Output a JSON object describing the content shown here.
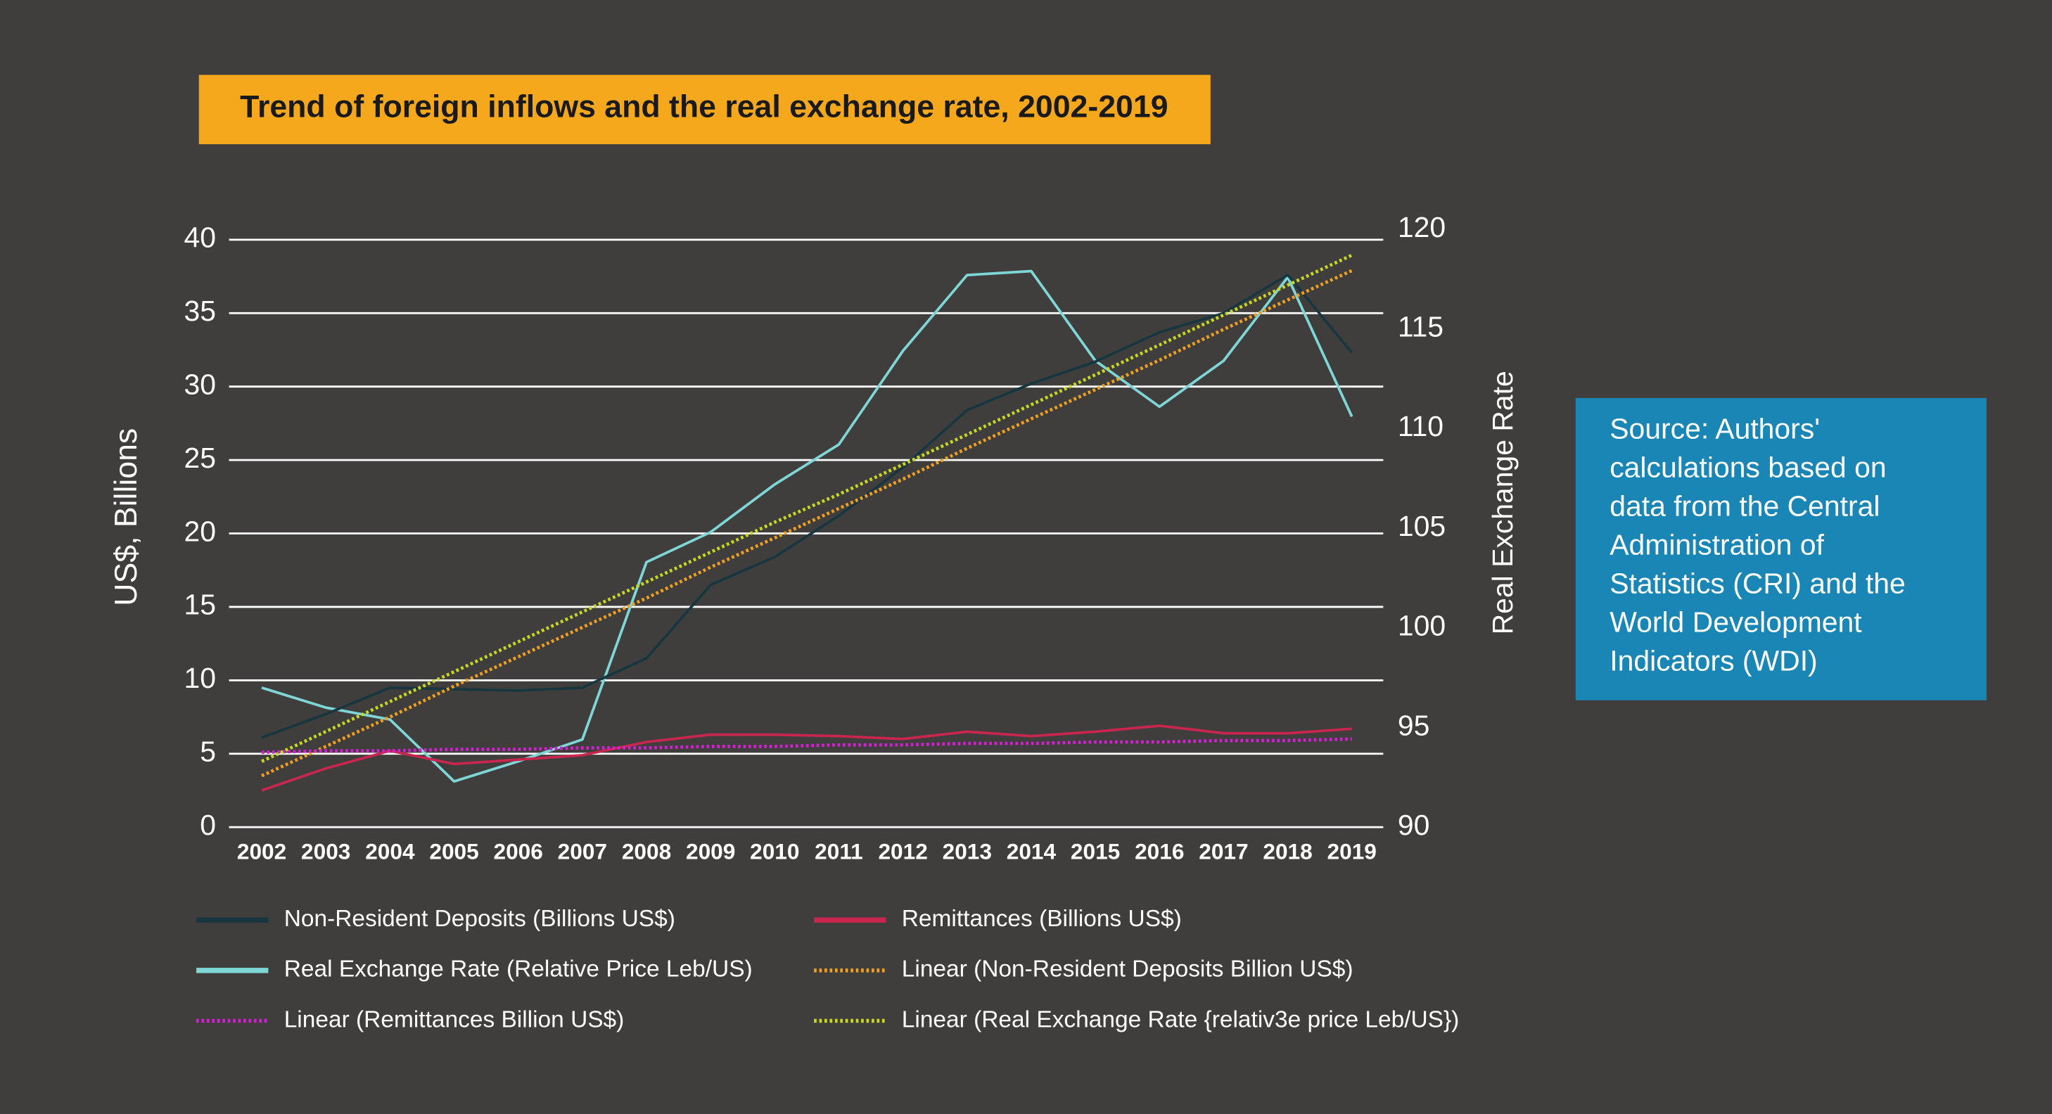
{
  "chart_data": {
    "type": "line",
    "title": "Trend of foreign inflows and the real exchange rate, 2002-2019",
    "ylabel": "US$, Billions",
    "y2label": "Real Exchange Rate",
    "source_lines": [
      "Source: Authors'",
      "calculations based on",
      "data from the Central",
      "Administration of",
      "Statistics (CRI) and the",
      "World Development",
      "Indicators (WDI)"
    ],
    "categories": [
      "2002",
      "2003",
      "2004",
      "2005",
      "2006",
      "2007",
      "2008",
      "2009",
      "2010",
      "2011",
      "2012",
      "2013",
      "2014",
      "2015",
      "2016",
      "2017",
      "2018",
      "2019"
    ],
    "ylim": [
      0,
      40
    ],
    "yticks": [
      0,
      5,
      10,
      15,
      20,
      25,
      30,
      35,
      40
    ],
    "y2lim": [
      90,
      120
    ],
    "y2ticks": [
      90,
      95,
      100,
      105,
      110,
      115,
      120
    ],
    "grid": true,
    "legend": "bottom",
    "series": [
      {
        "name": "Non-Resident Deposits (Billions US$)",
        "color": "#173640",
        "line_style": "solid",
        "values": [
          6.1,
          7.7,
          9.5,
          9.4,
          9.3,
          9.5,
          11.5,
          16.5,
          18.4,
          21.2,
          24.5,
          28.4,
          30.2,
          31.7,
          33.7,
          35.0,
          37.6,
          32.3
        ]
      },
      {
        "name": "Remittances (Billions US$)",
        "color": "#c8264f",
        "line_style": "solid",
        "values": [
          2.5,
          4.0,
          5.2,
          4.3,
          4.6,
          4.9,
          5.8,
          6.3,
          6.3,
          6.2,
          6.0,
          6.5,
          6.2,
          6.5,
          6.9,
          6.4,
          6.4,
          6.7
        ]
      },
      {
        "name": "Real Exchange Rate (Relative Price Leb/US)",
        "color": "#7fd6d6",
        "line_style": "solid",
        "axis": "y2",
        "values": [
          97.0,
          96.0,
          95.4,
          92.3,
          93.3,
          94.4,
          103.3,
          104.8,
          107.2,
          109.2,
          113.9,
          117.7,
          117.9,
          113.4,
          111.1,
          113.4,
          117.6,
          110.6
        ]
      },
      {
        "name": "Linear (Non-Resident Deposits Billion US$)",
        "color": "#f0a020",
        "line_style": "dotted",
        "values": [
          3.5,
          5.5,
          7.5,
          9.6,
          11.6,
          13.6,
          15.6,
          17.7,
          19.7,
          21.7,
          23.7,
          25.8,
          27.8,
          29.8,
          31.8,
          33.9,
          35.9,
          37.9
        ]
      },
      {
        "name": "Linear (Remittances Billion US$)",
        "color": "#d020d0",
        "line_style": "dotted",
        "values": [
          5.1,
          5.2,
          5.2,
          5.3,
          5.3,
          5.4,
          5.4,
          5.5,
          5.5,
          5.6,
          5.6,
          5.7,
          5.7,
          5.8,
          5.8,
          5.9,
          5.9,
          6.0
        ]
      },
      {
        "name": "Linear (Real Exchange Rate {relativ3e price Leb/US})",
        "color": "#c8d820",
        "line_style": "dotted",
        "axis": "y2",
        "values": [
          93.3,
          94.8,
          96.3,
          97.8,
          99.3,
          100.8,
          102.3,
          103.8,
          105.3,
          106.7,
          108.2,
          109.7,
          111.2,
          112.7,
          114.2,
          115.7,
          117.2,
          118.7
        ]
      }
    ]
  }
}
